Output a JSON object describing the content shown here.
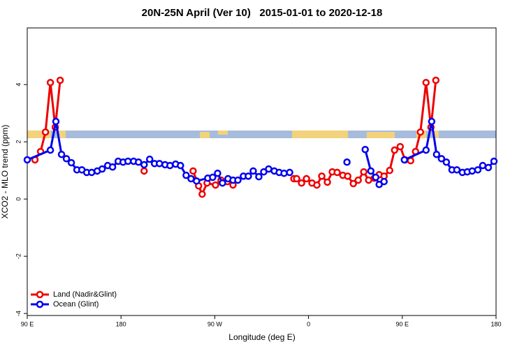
{
  "chart_data": {
    "type": "line",
    "title": "20N-25N April (Ver 10)   2015-01-01 to 2020-12-18",
    "x_label": "Longitude (deg E)",
    "y_label": "XCO2 - MLO trend (ppm)",
    "xlim": [
      90,
      540
    ],
    "ylim": [
      -4.07,
      5.98
    ],
    "xticks": [
      {
        "value": 90,
        "label": "90 E"
      },
      180,
      {
        "value": 270,
        "label": "90 W"
      },
      {
        "value": 360,
        "label": "0"
      },
      {
        "value": 450,
        "label": "90 E"
      },
      {
        "value": 540,
        "label": "180"
      }
    ],
    "yticks": [
      -4,
      -2,
      0,
      2,
      4
    ],
    "legend": "bottom-left",
    "series": [
      {
        "name": "Land (Nadir&Glint)",
        "color": "#ee0000",
        "x": [
          97.4,
          102.8,
          107.5,
          112.2,
          116.9,
          121.6,
          null,
          202.2,
          null,
          249.2,
          254.5,
          257.9,
          262.6,
          270.7,
          276.0,
          282.1,
          287.5,
          null,
          345.9,
          348.6,
          353.3,
          358.0,
          363.3,
          368.0,
          372.7,
          378.1,
          382.8,
          387.5,
          392.9,
          397.6,
          403.0,
          407.7,
          413.0,
          417.7,
          423.1,
          427.8,
          432.5,
          437.9,
          442.6,
          448.0,
          452.7,
          458.0,
          462.7,
          467.4,
          472.8,
          477.5,
          482.2
        ],
        "values": [
          1.37,
          1.66,
          2.34,
          4.07,
          2.51,
          4.15,
          null,
          0.98,
          null,
          0.98,
          0.46,
          0.17,
          0.56,
          0.49,
          0.66,
          0.61,
          0.49,
          null,
          0.71,
          0.71,
          0.56,
          0.71,
          0.56,
          0.49,
          0.8,
          0.59,
          0.95,
          0.93,
          0.83,
          0.8,
          0.54,
          0.66,
          0.95,
          0.66,
          0.73,
          0.85,
          0.8,
          1.0,
          1.71,
          1.83,
          1.37,
          1.34,
          1.66,
          2.34,
          4.07,
          2.51,
          4.15
        ]
      },
      {
        "name": "Ocean (Glint)",
        "color": "#0000ee",
        "x": [
          90.0,
          112.2,
          117.5,
          122.9,
          127.6,
          132.3,
          137.7,
          142.4,
          147.1,
          151.8,
          157.2,
          161.9,
          167.2,
          171.9,
          177.3,
          182.0,
          186.7,
          192.1,
          196.8,
          202.2,
          207.5,
          212.2,
          216.9,
          222.3,
          227.0,
          232.4,
          237.1,
          242.5,
          247.2,
          252.5,
          263.3,
          268.0,
          272.7,
          277.4,
          282.7,
          287.5,
          292.2,
          297.5,
          302.2,
          306.9,
          312.3,
          317.0,
          321.7,
          327.1,
          331.8,
          336.5,
          341.9,
          null,
          396.9,
          null,
          414.4,
          419.8,
          424.5,
          427.8,
          432.5,
          null,
          452.0,
          472.8,
          478.2,
          482.9,
          487.6,
          492.3,
          497.7,
          502.4,
          507.7,
          512.4,
          517.1,
          522.5,
          527.2,
          532.6,
          538.0
        ],
        "values": [
          1.37,
          1.71,
          2.71,
          1.56,
          1.41,
          1.27,
          1.02,
          1.02,
          0.93,
          0.93,
          0.98,
          1.05,
          1.17,
          1.12,
          1.32,
          1.29,
          1.32,
          1.32,
          1.29,
          1.2,
          1.39,
          1.24,
          1.24,
          1.2,
          1.17,
          1.22,
          1.17,
          0.83,
          0.71,
          0.63,
          0.73,
          0.76,
          0.9,
          0.56,
          0.71,
          0.66,
          0.66,
          0.8,
          0.8,
          0.98,
          0.78,
          0.95,
          1.05,
          0.98,
          0.93,
          0.9,
          0.93,
          null,
          1.29,
          null,
          1.73,
          0.98,
          0.76,
          0.51,
          0.61,
          null,
          1.37,
          1.71,
          2.71,
          1.56,
          1.41,
          1.29,
          1.02,
          1.02,
          0.93,
          0.95,
          0.98,
          1.02,
          1.17,
          1.1,
          1.32
        ]
      }
    ]
  }
}
